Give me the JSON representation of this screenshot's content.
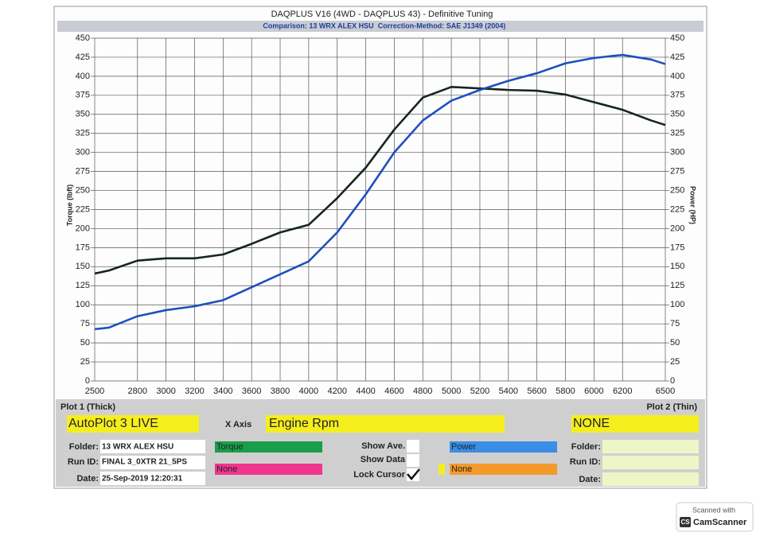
{
  "chart_data": {
    "type": "line",
    "title": "DAQPLUS V16 (4WD - DAQPLUS 43) - Definitive Tuning",
    "annotations": [
      "Comparison: 13 WRX ALEX HSU",
      "Correction-Method: SAE J1349 (2004)"
    ],
    "x_label": "Engine Rpm",
    "y_label": "Torque (lbft)",
    "y2_label": "Power (HP)",
    "x": [
      2500,
      2600,
      2800,
      3000,
      3200,
      3400,
      3600,
      3800,
      4000,
      4200,
      4400,
      4600,
      4800,
      5000,
      5200,
      5400,
      5600,
      5800,
      6000,
      6200,
      6400,
      6500
    ],
    "series": [
      {
        "name": "Torque",
        "color": "#16261e",
        "values": [
          141,
          145,
          158,
          161,
          161,
          166,
          180,
          195,
          205,
          240,
          280,
          330,
          372,
          386,
          384,
          382,
          381,
          376,
          366,
          356,
          342,
          336
        ]
      },
      {
        "name": "Power",
        "color": "#1f4fbf",
        "axis": "y2",
        "values": [
          68,
          70,
          85,
          93,
          98,
          106,
          123,
          140,
          157,
          195,
          245,
          300,
          342,
          368,
          382,
          394,
          404,
          417,
          424,
          428,
          422,
          416
        ]
      }
    ],
    "xlim": [
      2500,
      6500
    ],
    "xticks": [
      2500,
      2800,
      3000,
      3200,
      3400,
      3600,
      3800,
      4000,
      4200,
      4400,
      4600,
      4800,
      5000,
      5200,
      5400,
      5600,
      5800,
      6000,
      6200,
      6500
    ],
    "ylim": [
      0,
      450
    ],
    "yticks": [
      0,
      25,
      50,
      75,
      100,
      125,
      150,
      175,
      200,
      225,
      250,
      275,
      300,
      325,
      350,
      375,
      400,
      425,
      450
    ],
    "y2lim": [
      0,
      450
    ],
    "y2ticks": [
      0,
      25,
      50,
      75,
      100,
      125,
      150,
      175,
      200,
      225,
      250,
      275,
      300,
      325,
      350,
      375,
      400,
      425,
      450
    ],
    "grid": true
  },
  "panel": {
    "plot1": "Plot 1 (Thick)",
    "plot2": "Plot 2 (Thin)",
    "autoplot": "AutoPlot 3 LIVE",
    "x_axis": "X Axis",
    "plot2_select": "NONE",
    "folder_label": "Folder:",
    "folder": "13 WRX ALEX HSU",
    "run_label": "Run ID:",
    "run": "FINAL 3_0XTR 21_5PS",
    "date_label": "Date:",
    "date": "25-Sep-2019 12:20:31",
    "none1": "None",
    "none2": "None",
    "show_ave": "Show Ave.",
    "show_data": "Show Data",
    "lock_cursor": "Lock Cursor",
    "folder2_label": "Folder:",
    "run2_label": "Run ID:",
    "date2_label": "Date:"
  },
  "watermark": {
    "line1": "Scanned with",
    "logo": "CS",
    "line2": "CamScanner"
  }
}
